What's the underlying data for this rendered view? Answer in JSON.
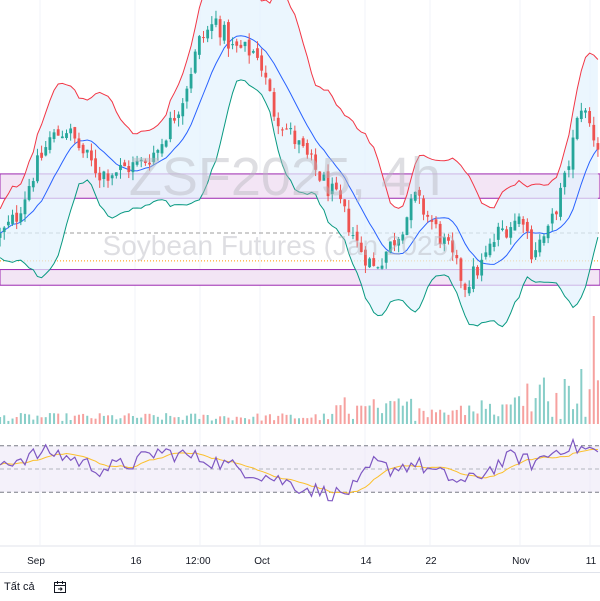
{
  "chart_data": {
    "type": "candlestick",
    "watermark": {
      "symbol": "ZSF2025, 4h",
      "description": "Soybean Futures (Jan 2025)"
    },
    "x_ticks": [
      "Sep",
      "16",
      "12:00",
      "Oct",
      "14",
      "22",
      "Nov",
      "11"
    ],
    "zones": [
      {
        "name": "upper-zone",
        "from": 985,
        "to": 992
      },
      {
        "name": "lower-zone",
        "from": 960,
        "to": 964.5
      }
    ],
    "ref_lines": {
      "dashed": 975,
      "dotted": 967
    },
    "price_path": [
      [
        0,
        974
      ],
      [
        4,
        980
      ],
      [
        8,
        992
      ],
      [
        12,
        1002
      ],
      [
        16,
        1005
      ],
      [
        20,
        998
      ],
      [
        24,
        992
      ],
      [
        28,
        993
      ],
      [
        34,
        995
      ],
      [
        38,
        999
      ],
      [
        44,
        1014
      ],
      [
        48,
        1030
      ],
      [
        52,
        1036
      ],
      [
        56,
        1028
      ],
      [
        62,
        1027
      ],
      [
        66,
        1010
      ],
      [
        72,
        1000
      ],
      [
        76,
        993
      ],
      [
        82,
        983
      ],
      [
        86,
        972
      ],
      [
        90,
        965
      ],
      [
        92,
        968
      ],
      [
        96,
        975
      ],
      [
        100,
        985
      ],
      [
        104,
        978
      ],
      [
        108,
        970
      ],
      [
        112,
        960
      ],
      [
        116,
        966
      ],
      [
        120,
        975
      ],
      [
        126,
        980
      ],
      [
        128,
        970
      ],
      [
        132,
        975
      ],
      [
        136,
        990
      ],
      [
        140,
        1012
      ],
      [
        144,
        1000
      ]
    ],
    "rsi": {
      "upper": 70,
      "lower": 30,
      "path": [
        [
          0,
          55
        ],
        [
          6,
          60
        ],
        [
          12,
          65
        ],
        [
          18,
          58
        ],
        [
          24,
          50
        ],
        [
          32,
          55
        ],
        [
          38,
          65
        ],
        [
          44,
          62
        ],
        [
          50,
          58
        ],
        [
          58,
          50
        ],
        [
          66,
          42
        ],
        [
          72,
          35
        ],
        [
          78,
          30
        ],
        [
          82,
          28
        ],
        [
          86,
          35
        ],
        [
          90,
          55
        ],
        [
          94,
          50
        ],
        [
          100,
          55
        ],
        [
          106,
          45
        ],
        [
          112,
          38
        ],
        [
          118,
          50
        ],
        [
          124,
          62
        ],
        [
          128,
          55
        ],
        [
          132,
          62
        ],
        [
          136,
          70
        ],
        [
          144,
          65
        ]
      ]
    }
  },
  "ui": {
    "bottom_label": "Tất cả",
    "icon": "calendar-range-icon"
  },
  "colors": {
    "up": "#26a69a",
    "down": "#ef5350",
    "band_upper": "#f23645",
    "band_mid": "#2962ff",
    "band_lower": "#089981",
    "band_fill": "#e3f2fd",
    "zone_fill": "#f3e5f5",
    "zone_border": "#9c27b0",
    "rsi_line": "#7e57c2",
    "rsi_ma": "#fbc02d"
  }
}
